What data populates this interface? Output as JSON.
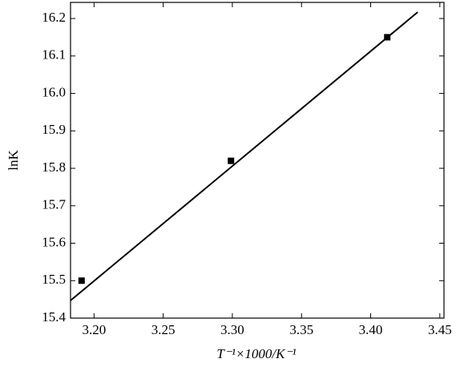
{
  "chart_data": {
    "type": "scatter",
    "xlabel": "T⁻¹×1000/K⁻¹",
    "ylabel": "lnK",
    "series": [
      {
        "x": [
          3.191,
          3.299,
          3.412
        ],
        "values": [
          15.5,
          15.82,
          16.15
        ],
        "color": "#000000",
        "mode": "markers"
      },
      {
        "x": [
          3.183,
          3.434
        ],
        "values": [
          15.447,
          16.217
        ],
        "color": "#000000",
        "mode": "line"
      }
    ],
    "xlim": [
      3.183,
      3.453
    ],
    "ylim": [
      15.4,
      16.243
    ],
    "xticks": [
      {
        "value": 3.2,
        "label": "3.20"
      },
      {
        "value": 3.25,
        "label": "3.25"
      },
      {
        "value": 3.3,
        "label": "3.30"
      },
      {
        "value": 3.35,
        "label": "3.35"
      },
      {
        "value": 3.4,
        "label": "3.40"
      },
      {
        "value": 3.45,
        "label": "3.45"
      }
    ],
    "yticks": [
      15.4,
      15.5,
      15.6,
      15.7,
      15.8,
      15.9,
      {
        "value": 16.0,
        "label": "16.0"
      },
      16.1,
      16.2
    ]
  }
}
